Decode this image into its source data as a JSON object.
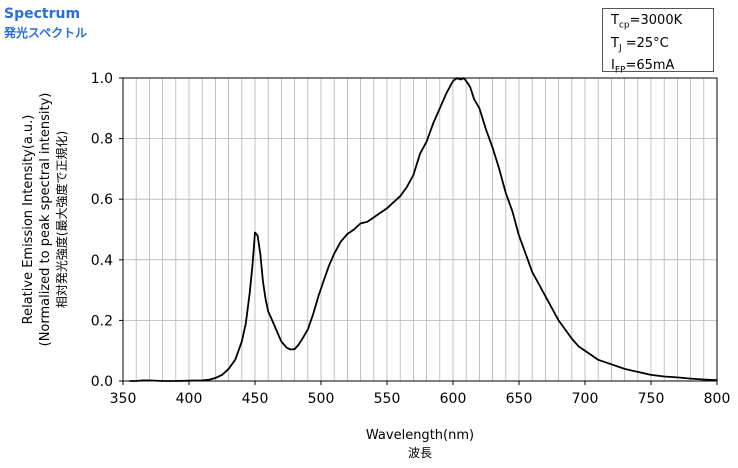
{
  "header": {
    "title": "Spectrum",
    "subtitle": "発光スペクトル"
  },
  "conditions": [
    {
      "sym": "T",
      "sub": "cp",
      "val": "=3000K"
    },
    {
      "sym": "T",
      "sub": "J",
      "val": " =25°C"
    },
    {
      "sym": "I",
      "sub": "FP",
      "val": "=65mA"
    }
  ],
  "chart_data": {
    "type": "line",
    "xlabel": "Wavelength(nm)",
    "xlabel_ja": "波長",
    "ylabel_lines": [
      "Relative Emission Intensity(a.u.)",
      "(Normalized to peak spectral intensity)",
      "相対発光強度(最大強度で正規化)"
    ],
    "xlim": [
      350,
      800
    ],
    "ylim": [
      0,
      1.0
    ],
    "xticks": [
      350,
      400,
      450,
      500,
      550,
      600,
      650,
      700,
      750,
      800
    ],
    "xtick_labels": [
      "350",
      "400",
      "450",
      "500",
      "550",
      "600",
      "650",
      "700",
      "750",
      "800"
    ],
    "yticks": [
      0,
      0.2,
      0.4,
      0.6,
      0.8,
      1.0
    ],
    "ytick_labels": [
      "0.0",
      "0.2",
      "0.4",
      "0.6",
      "0.8",
      "1.0"
    ],
    "grid": "vertical minor every 10 nm, horizontal at major y ticks",
    "series": [
      {
        "color": "#000000",
        "x": [
          355,
          360,
          365,
          370,
          380,
          390,
          400,
          410,
          415,
          420,
          425,
          430,
          435,
          440,
          443,
          446,
          448,
          450,
          452,
          454,
          456,
          458,
          460,
          463,
          466,
          470,
          474,
          477,
          480,
          483,
          486,
          490,
          494,
          498,
          502,
          506,
          510,
          515,
          520,
          525,
          530,
          535,
          540,
          545,
          550,
          555,
          560,
          565,
          570,
          575,
          580,
          585,
          590,
          595,
          600,
          603,
          606,
          608,
          610,
          613,
          616,
          620,
          625,
          630,
          635,
          640,
          645,
          650,
          655,
          660,
          665,
          670,
          675,
          680,
          685,
          690,
          695,
          700,
          705,
          710,
          720,
          730,
          740,
          750,
          760,
          770,
          780,
          790,
          800
        ],
        "y": [
          0.0,
          0.0,
          0.002,
          0.002,
          0.0,
          0.0,
          0.001,
          0.002,
          0.004,
          0.01,
          0.02,
          0.04,
          0.07,
          0.13,
          0.19,
          0.29,
          0.38,
          0.49,
          0.48,
          0.42,
          0.33,
          0.27,
          0.23,
          0.2,
          0.17,
          0.13,
          0.11,
          0.104,
          0.105,
          0.12,
          0.14,
          0.17,
          0.22,
          0.28,
          0.33,
          0.38,
          0.42,
          0.46,
          0.485,
          0.5,
          0.52,
          0.525,
          0.54,
          0.555,
          0.57,
          0.59,
          0.61,
          0.64,
          0.68,
          0.75,
          0.79,
          0.85,
          0.9,
          0.95,
          0.99,
          1.0,
          0.995,
          1.0,
          0.99,
          0.97,
          0.93,
          0.9,
          0.83,
          0.77,
          0.7,
          0.62,
          0.56,
          0.48,
          0.42,
          0.36,
          0.32,
          0.28,
          0.24,
          0.2,
          0.17,
          0.14,
          0.115,
          0.1,
          0.085,
          0.07,
          0.055,
          0.04,
          0.03,
          0.02,
          0.015,
          0.012,
          0.008,
          0.005,
          0.003
        ]
      }
    ]
  }
}
